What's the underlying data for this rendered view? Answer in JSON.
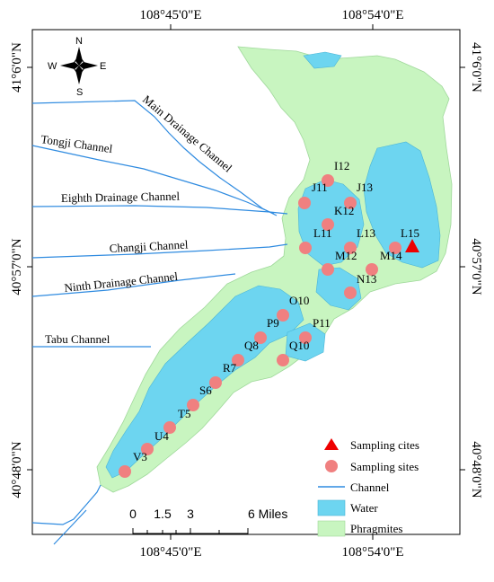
{
  "axes": {
    "top_ticks": [
      "108°45'0\"E",
      "108°54'0\"E"
    ],
    "bottom_ticks": [
      "108°45'0\"E",
      "108°54'0\"E"
    ],
    "left_ticks": [
      "41°6'0\"N",
      "40°57'0\"N",
      "40°48'0\"N"
    ],
    "right_ticks": [
      "41°6'0\"N",
      "40°57'0\"N",
      "40°48'0\"N"
    ]
  },
  "compass": {
    "n": "N",
    "s": "S",
    "e": "E",
    "w": "W"
  },
  "channels": {
    "main_drainage": "Main Drainage Channel",
    "tongji": "Tongji Channel",
    "eighth_drainage": "Eighth Drainage Channel",
    "changji": "Changji Channel",
    "ninth_drainage": "Ninth Drainage Channel",
    "tabu": "Tabu Channel"
  },
  "sites": [
    {
      "id": "I12"
    },
    {
      "id": "J11"
    },
    {
      "id": "J13"
    },
    {
      "id": "K12"
    },
    {
      "id": "L11"
    },
    {
      "id": "L13"
    },
    {
      "id": "L15"
    },
    {
      "id": "M12"
    },
    {
      "id": "M14"
    },
    {
      "id": "N13"
    },
    {
      "id": "O10"
    },
    {
      "id": "P9"
    },
    {
      "id": "P11"
    },
    {
      "id": "Q8"
    },
    {
      "id": "Q10"
    },
    {
      "id": "R7"
    },
    {
      "id": "S6"
    },
    {
      "id": "T5"
    },
    {
      "id": "U4"
    },
    {
      "id": "V3"
    }
  ],
  "scale_bar": {
    "labels": [
      "0",
      "1.5",
      "3",
      "6 Miles"
    ]
  },
  "legend": {
    "sampling_cites": "Sampling cites",
    "sampling_sites": "Sampling sites",
    "channel": "Channel",
    "water": "Water",
    "phragmites": "Phragmites"
  },
  "colors": {
    "water": "#6dd5f0",
    "phragmites": "#c8f5c0",
    "channel": "#2f8be0",
    "site_marker": "#f08080",
    "cite_marker": "#ee0000"
  }
}
